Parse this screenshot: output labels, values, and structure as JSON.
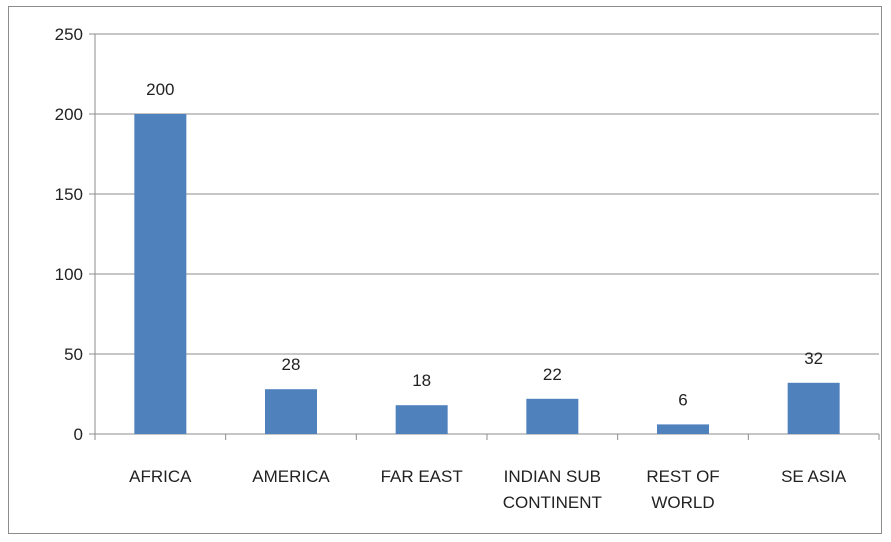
{
  "chart_data": {
    "type": "bar",
    "categories": [
      [
        "AFRICA"
      ],
      [
        "AMERICA"
      ],
      [
        "FAR EAST"
      ],
      [
        "INDIAN SUB",
        "CONTINENT"
      ],
      [
        "REST OF",
        "WORLD"
      ],
      [
        "SE ASIA"
      ]
    ],
    "values": [
      200,
      28,
      18,
      22,
      6,
      32
    ],
    "data_labels": [
      "200",
      "28",
      "18",
      "22",
      "6",
      "32"
    ],
    "yticks": [
      "0",
      "50",
      "100",
      "150",
      "200",
      "250"
    ],
    "ylim": [
      0,
      250
    ],
    "grid": true,
    "legend": "none",
    "colors": {
      "bar": "#4f81bd",
      "grid": "#8c8c8c",
      "axis": "#8c8c8c"
    }
  }
}
